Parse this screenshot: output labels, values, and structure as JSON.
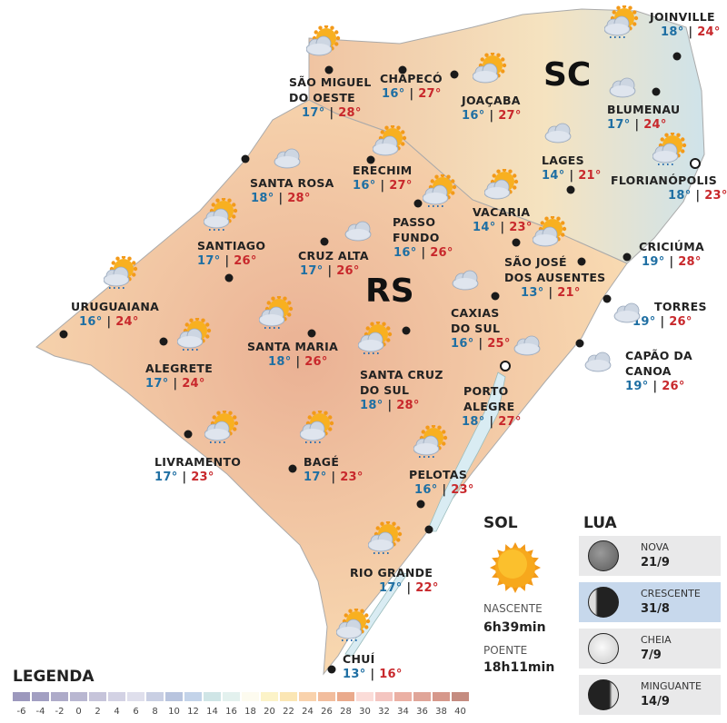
{
  "states": {
    "rs": "RS",
    "sc": "SC"
  },
  "cities": [
    {
      "name": [
        "SÃO MIGUEL",
        "DO OESTE"
      ],
      "min": "17°",
      "max": "28°",
      "icon": "sun-cloud-icon"
    },
    {
      "name": [
        "CHAPECÓ"
      ],
      "min": "16°",
      "max": "27°",
      "icon": ""
    },
    {
      "name": [
        "JOAÇABA"
      ],
      "min": "16°",
      "max": "27°",
      "icon": "sun-cloud-icon"
    },
    {
      "name": [
        "JOINVILLE"
      ],
      "min": "18°",
      "max": "24°",
      "icon": "sun-cloud-rain-icon"
    },
    {
      "name": [
        "BLUMENAU"
      ],
      "min": "17°",
      "max": "24°",
      "icon": "cloud-icon"
    },
    {
      "name": [
        "LAGES"
      ],
      "min": "14°",
      "max": "21°",
      "icon": "cloud-icon"
    },
    {
      "name": [
        "FLORIANÓPOLIS"
      ],
      "min": "18°",
      "max": "23°",
      "icon": "sun-cloud-rain-icon"
    },
    {
      "name": [
        "SANTA ROSA"
      ],
      "min": "18°",
      "max": "28°",
      "icon": "cloud-icon"
    },
    {
      "name": [
        "ERECHIM"
      ],
      "min": "16°",
      "max": "27°",
      "icon": "sun-cloud-icon"
    },
    {
      "name": [
        "PASSO",
        "FUNDO"
      ],
      "min": "16°",
      "max": "26°",
      "icon": "sun-cloud-rain-icon"
    },
    {
      "name": [
        "VACARIA"
      ],
      "min": "14°",
      "max": "23°",
      "icon": "sun-cloud-icon"
    },
    {
      "name": [
        "SANTIAGO"
      ],
      "min": "17°",
      "max": "26°",
      "icon": "sun-cloud-rain-icon"
    },
    {
      "name": [
        "CRUZ ALTA"
      ],
      "min": "17°",
      "max": "26°",
      "icon": "cloud-icon"
    },
    {
      "name": [
        "SÃO JOSÉ",
        "DOS AUSENTES"
      ],
      "min": "13°",
      "max": "21°",
      "icon": "sun-cloud-icon"
    },
    {
      "name": [
        "CRICIÚMA"
      ],
      "min": "19°",
      "max": "28°",
      "icon": ""
    },
    {
      "name": [
        "URUGUAIANA"
      ],
      "min": "16°",
      "max": "24°",
      "icon": "sun-cloud-rain-icon"
    },
    {
      "name": [
        "ALEGRETE"
      ],
      "min": "17°",
      "max": "24°",
      "icon": "sun-cloud-rain-icon"
    },
    {
      "name": [
        "SANTA MARIA"
      ],
      "min": "18°",
      "max": "26°",
      "icon": "sun-cloud-rain-icon"
    },
    {
      "name": [
        "CAXIAS",
        "DO SUL"
      ],
      "min": "16°",
      "max": "25°",
      "icon": "cloud-icon"
    },
    {
      "name": [
        "TORRES"
      ],
      "min": "19°",
      "max": "26°",
      "icon": "cloud-icon"
    },
    {
      "name": [
        "CAPÃO DA",
        "CANOA"
      ],
      "min": "19°",
      "max": "26°",
      "icon": "cloud-icon"
    },
    {
      "name": [
        "SANTA CRUZ",
        "DO SUL"
      ],
      "min": "18°",
      "max": "28°",
      "icon": "sun-cloud-rain-icon"
    },
    {
      "name": [
        "PORTO",
        "ALEGRE"
      ],
      "min": "18°",
      "max": "27°",
      "icon": "cloud-icon"
    },
    {
      "name": [
        "LIVRAMENTO"
      ],
      "min": "17°",
      "max": "23°",
      "icon": "sun-cloud-rain-icon"
    },
    {
      "name": [
        "BAGÉ"
      ],
      "min": "17°",
      "max": "23°",
      "icon": "sun-cloud-rain-icon"
    },
    {
      "name": [
        "PELOTAS"
      ],
      "min": "16°",
      "max": "23°",
      "icon": "sun-cloud-rain-icon"
    },
    {
      "name": [
        "RIO GRANDE"
      ],
      "min": "17°",
      "max": "22°",
      "icon": "sun-cloud-rain-icon"
    },
    {
      "name": [
        "CHUÍ"
      ],
      "min": "13°",
      "max": "16°",
      "icon": "sun-cloud-rain-icon"
    }
  ],
  "legend": {
    "title": "LEGENDA",
    "ticks": [
      "-6",
      "-4",
      "-2",
      "0",
      "2",
      "4",
      "6",
      "8",
      "10",
      "12",
      "14",
      "16",
      "18",
      "20",
      "22",
      "24",
      "26",
      "28",
      "30",
      "32",
      "34",
      "36",
      "38",
      "40"
    ],
    "colors": [
      "#9c98bd",
      "#a29fc2",
      "#aeabc9",
      "#b9b7d1",
      "#c6c4da",
      "#d3d2e4",
      "#dfdfec",
      "#c9cfe3",
      "#b8c4de",
      "#c3d3e9",
      "#cfe5e6",
      "#e3f1ee",
      "#fdfbef",
      "#fcf3c8",
      "#fbe6b4",
      "#f9d2ac",
      "#f2bd9d",
      "#eaaa8c",
      "#fbdcd8",
      "#f4c5c0",
      "#ebb0a4",
      "#e0a598",
      "#d6988b",
      "#c58c80"
    ],
    "temp_min_color": "#1f6fa3",
    "temp_max_color": "#c8282c"
  },
  "sun": {
    "title": "SOL",
    "sunrise_label": "NASCENTE",
    "sunrise": "6h39min",
    "sunset_label": "POENTE",
    "sunset": "18h11min"
  },
  "moon": {
    "title": "LUA",
    "phases": [
      {
        "name": "NOVA",
        "date": "21/9",
        "active": false
      },
      {
        "name": "CRESCENTE",
        "date": "31/8",
        "active": true
      },
      {
        "name": "CHEIA",
        "date": "7/9",
        "active": false
      },
      {
        "name": "MINGUANTE",
        "date": "14/9",
        "active": false
      }
    ]
  }
}
